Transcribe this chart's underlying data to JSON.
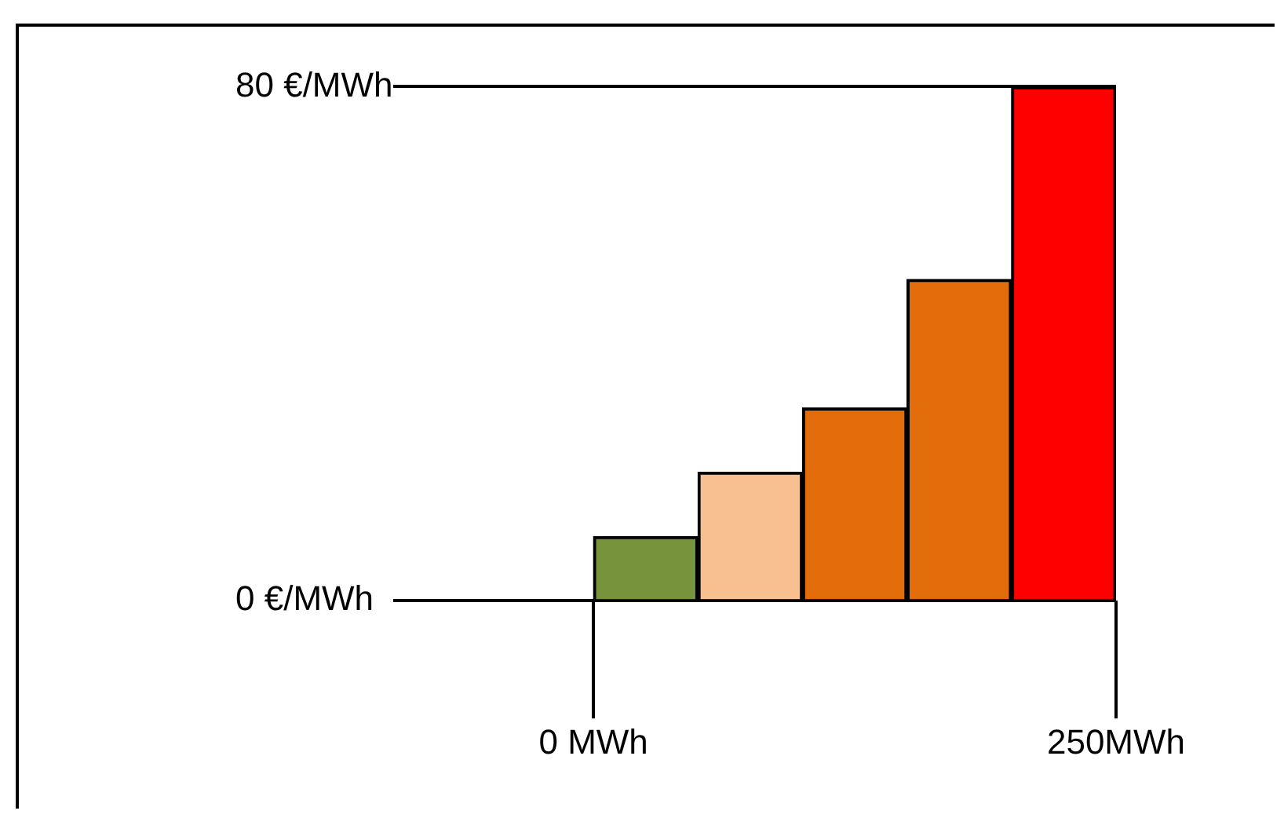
{
  "chart_data": {
    "type": "histogram",
    "bins": [
      0,
      50,
      100,
      150,
      200,
      250
    ],
    "values": [
      10,
      20,
      30,
      50,
      80
    ],
    "colors": [
      "#77933c",
      "#f8c090",
      "#e36c0a",
      "#e36c0a",
      "#ff0000"
    ],
    "xlim": [
      -96,
      250
    ],
    "xticks": [
      {
        "value": 0,
        "label": "0 MWh"
      },
      {
        "value": 250,
        "label": "250MWh"
      }
    ],
    "ylim": [
      0,
      80
    ],
    "yticks": [
      {
        "value": 0,
        "label": "0 €/MWh"
      },
      {
        "value": 80,
        "label": "80 €/MWh"
      }
    ],
    "grid": "y"
  }
}
